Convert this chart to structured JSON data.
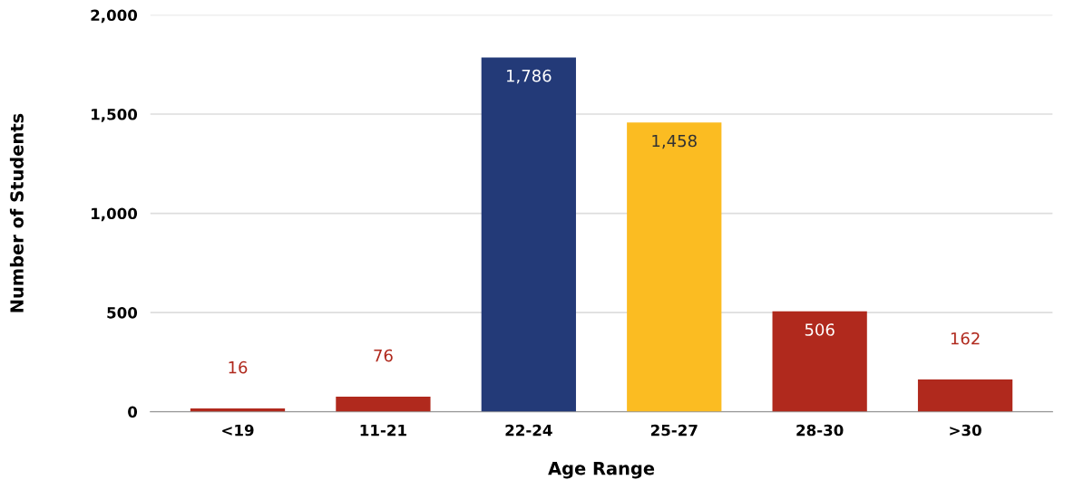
{
  "chart_data": {
    "type": "bar",
    "xlabel": "Age Range",
    "ylabel": "Number of Students",
    "categories": [
      "<19",
      "11-21",
      "22-24",
      "25-27",
      "28-30",
      ">30"
    ],
    "values": [
      16,
      76,
      1786,
      1458,
      506,
      162
    ],
    "colors": [
      "#b0291d",
      "#b0291d",
      "#233a78",
      "#fbbc22",
      "#b0291d",
      "#b0291d"
    ],
    "ylim": [
      0,
      2000
    ],
    "yticks": [
      0,
      500,
      {
        "value": 1000,
        "label": "1,000"
      },
      {
        "value": 1500,
        "label": "1,500"
      },
      {
        "value": 2000,
        "label": "2,000"
      }
    ],
    "grid": "y",
    "value_labels": [
      "16",
      "76",
      "1,786",
      "1,458",
      "506",
      "162"
    ]
  }
}
